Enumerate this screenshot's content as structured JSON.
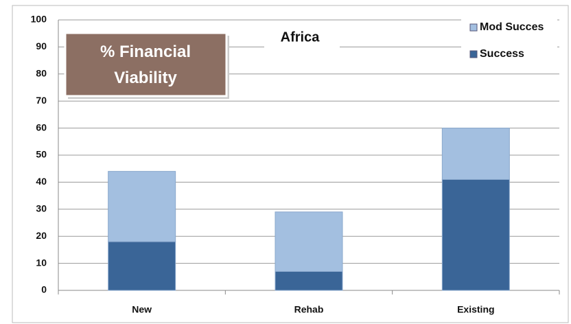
{
  "chart_data": {
    "type": "stacked_bar",
    "title": "Africa",
    "annotation": "% Financial Viability",
    "categories": [
      "New",
      "Rehab",
      "Existing"
    ],
    "series": [
      {
        "name": "Success",
        "color": "#3a6597",
        "values": [
          18,
          7,
          41
        ]
      },
      {
        "name": "Mod Succes",
        "color": "#a3bfe0",
        "values": [
          26,
          22,
          19
        ]
      }
    ],
    "ylim": [
      0,
      100
    ],
    "yticks": [
      0,
      10,
      20,
      30,
      40,
      50,
      60,
      70,
      80,
      90,
      100
    ],
    "grid": true,
    "legend": "top-right"
  }
}
